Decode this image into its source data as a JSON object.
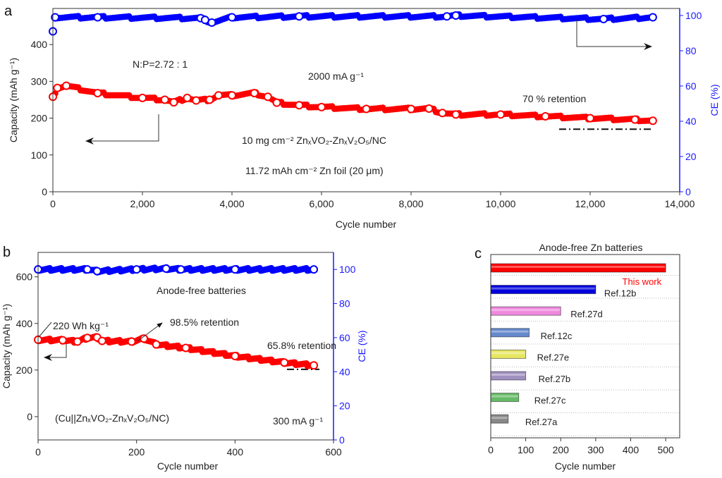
{
  "colors": {
    "capacity": "#ff0000",
    "ce": "#0000ff",
    "axis_right": "#1a1aff"
  },
  "chart_data": [
    {
      "panel": "a",
      "type": "scatter",
      "xlabel": "Cycle number",
      "ylabel": "Capacity (mAh g⁻¹)",
      "y2label": "CE (%)",
      "xlim": [
        0,
        14000
      ],
      "ylim": [
        0,
        498
      ],
      "y2lim": [
        0,
        104
      ],
      "xticks": [
        "0",
        "2,000",
        "4,000",
        "6,000",
        "8,000",
        "10,000",
        "12,000",
        "14,000"
      ],
      "xtick_values": [
        0,
        2000,
        4000,
        6000,
        8000,
        10000,
        12000,
        14000
      ],
      "yticks": [
        0,
        100,
        200,
        300,
        400
      ],
      "y2ticks": [
        0,
        20,
        40,
        60,
        80,
        100
      ],
      "annotations": {
        "np_ratio": "N:P=2.72 : 1",
        "current": "2000 mA g⁻¹",
        "retention": "70 % retention",
        "cathode": "10 mg cm⁻² ZnₓVO₂-ZnₓV₂O₅/NC",
        "anode": "11.72 mAh cm⁻² Zn foil (20 μm)"
      },
      "retention_line_value": 170,
      "series": [
        {
          "name": "Capacity",
          "axis": "left",
          "x": [
            0,
            100,
            300,
            1000,
            2000,
            2500,
            2700,
            3000,
            3200,
            3500,
            3700,
            4000,
            4500,
            4800,
            5000,
            5500,
            6000,
            7000,
            8000,
            8400,
            8700,
            9000,
            10000,
            11000,
            12000,
            13000,
            13400
          ],
          "y": [
            258,
            282,
            288,
            268,
            255,
            250,
            243,
            255,
            248,
            250,
            262,
            262,
            268,
            258,
            242,
            235,
            230,
            225,
            225,
            226,
            214,
            210,
            210,
            205,
            200,
            196,
            193
          ]
        },
        {
          "name": "CE",
          "axis": "right",
          "x": [
            0,
            50,
            1000,
            3300,
            3400,
            3550,
            4000,
            5500,
            8800,
            9000,
            12300,
            13400
          ],
          "y": [
            91,
            99,
            99,
            98.5,
            97.5,
            96,
            99,
            99.5,
            99.5,
            100,
            98,
            99
          ]
        }
      ]
    },
    {
      "panel": "b",
      "type": "scatter",
      "xlabel": "Cycle number",
      "ylabel": "Capacity (mAh g⁻¹)",
      "y2label": "CE (%)",
      "xlim": [
        0,
        600
      ],
      "ylim": [
        -100,
        705
      ],
      "y2lim": [
        0,
        110
      ],
      "xticks": [
        0,
        200,
        400,
        600
      ],
      "yticks": [
        0,
        200,
        400,
        600
      ],
      "y2ticks": [
        0,
        20,
        40,
        60,
        80,
        100
      ],
      "annotations": {
        "title": "Anode-free batteries",
        "energy": "220 Wh kg⁻¹",
        "retention_mid": "98.5% retention",
        "retention_end": "65.8% retention",
        "cell": "(Cu||ZnₓVO₂-ZnₓV₂O₅/NC)",
        "current": "300 mA g⁻¹"
      },
      "retention_line_value": 203,
      "series": [
        {
          "name": "Capacity",
          "axis": "left",
          "x": [
            0,
            50,
            80,
            100,
            120,
            130,
            190,
            215,
            240,
            300,
            400,
            500,
            560
          ],
          "y": [
            330,
            328,
            322,
            338,
            340,
            325,
            322,
            335,
            310,
            295,
            260,
            232,
            220
          ]
        },
        {
          "name": "CE",
          "axis": "right",
          "x": [
            0,
            100,
            120,
            200,
            260,
            290,
            400,
            560
          ],
          "y": [
            100,
            100,
            99,
            100,
            100.5,
            100,
            100,
            100
          ]
        }
      ]
    },
    {
      "panel": "c",
      "type": "bar",
      "orientation": "horizontal",
      "title": "Anode-free Zn batteries",
      "xlabel": "Cycle number",
      "xlim": [
        0,
        540
      ],
      "xticks": [
        0,
        100,
        200,
        300,
        400,
        500
      ],
      "categories": [
        "This work",
        "Ref.12b",
        "Ref.27d",
        "Ref.12c",
        "Ref.27e",
        "Ref.27b",
        "Ref.27c",
        "Ref.27a"
      ],
      "values": [
        500,
        300,
        200,
        110,
        100,
        100,
        80,
        50
      ],
      "bar_colors": [
        "#ff0000",
        "#0000dd",
        "#ee88dd",
        "#6688cc",
        "#e6e660",
        "#a090c0",
        "#66bb66",
        "#888888"
      ],
      "label_colors": [
        "#ff0000",
        "#222222",
        "#222222",
        "#222222",
        "#222222",
        "#222222",
        "#222222",
        "#222222"
      ]
    }
  ],
  "panel_labels": {
    "a": "a",
    "b": "b",
    "c": "c"
  }
}
